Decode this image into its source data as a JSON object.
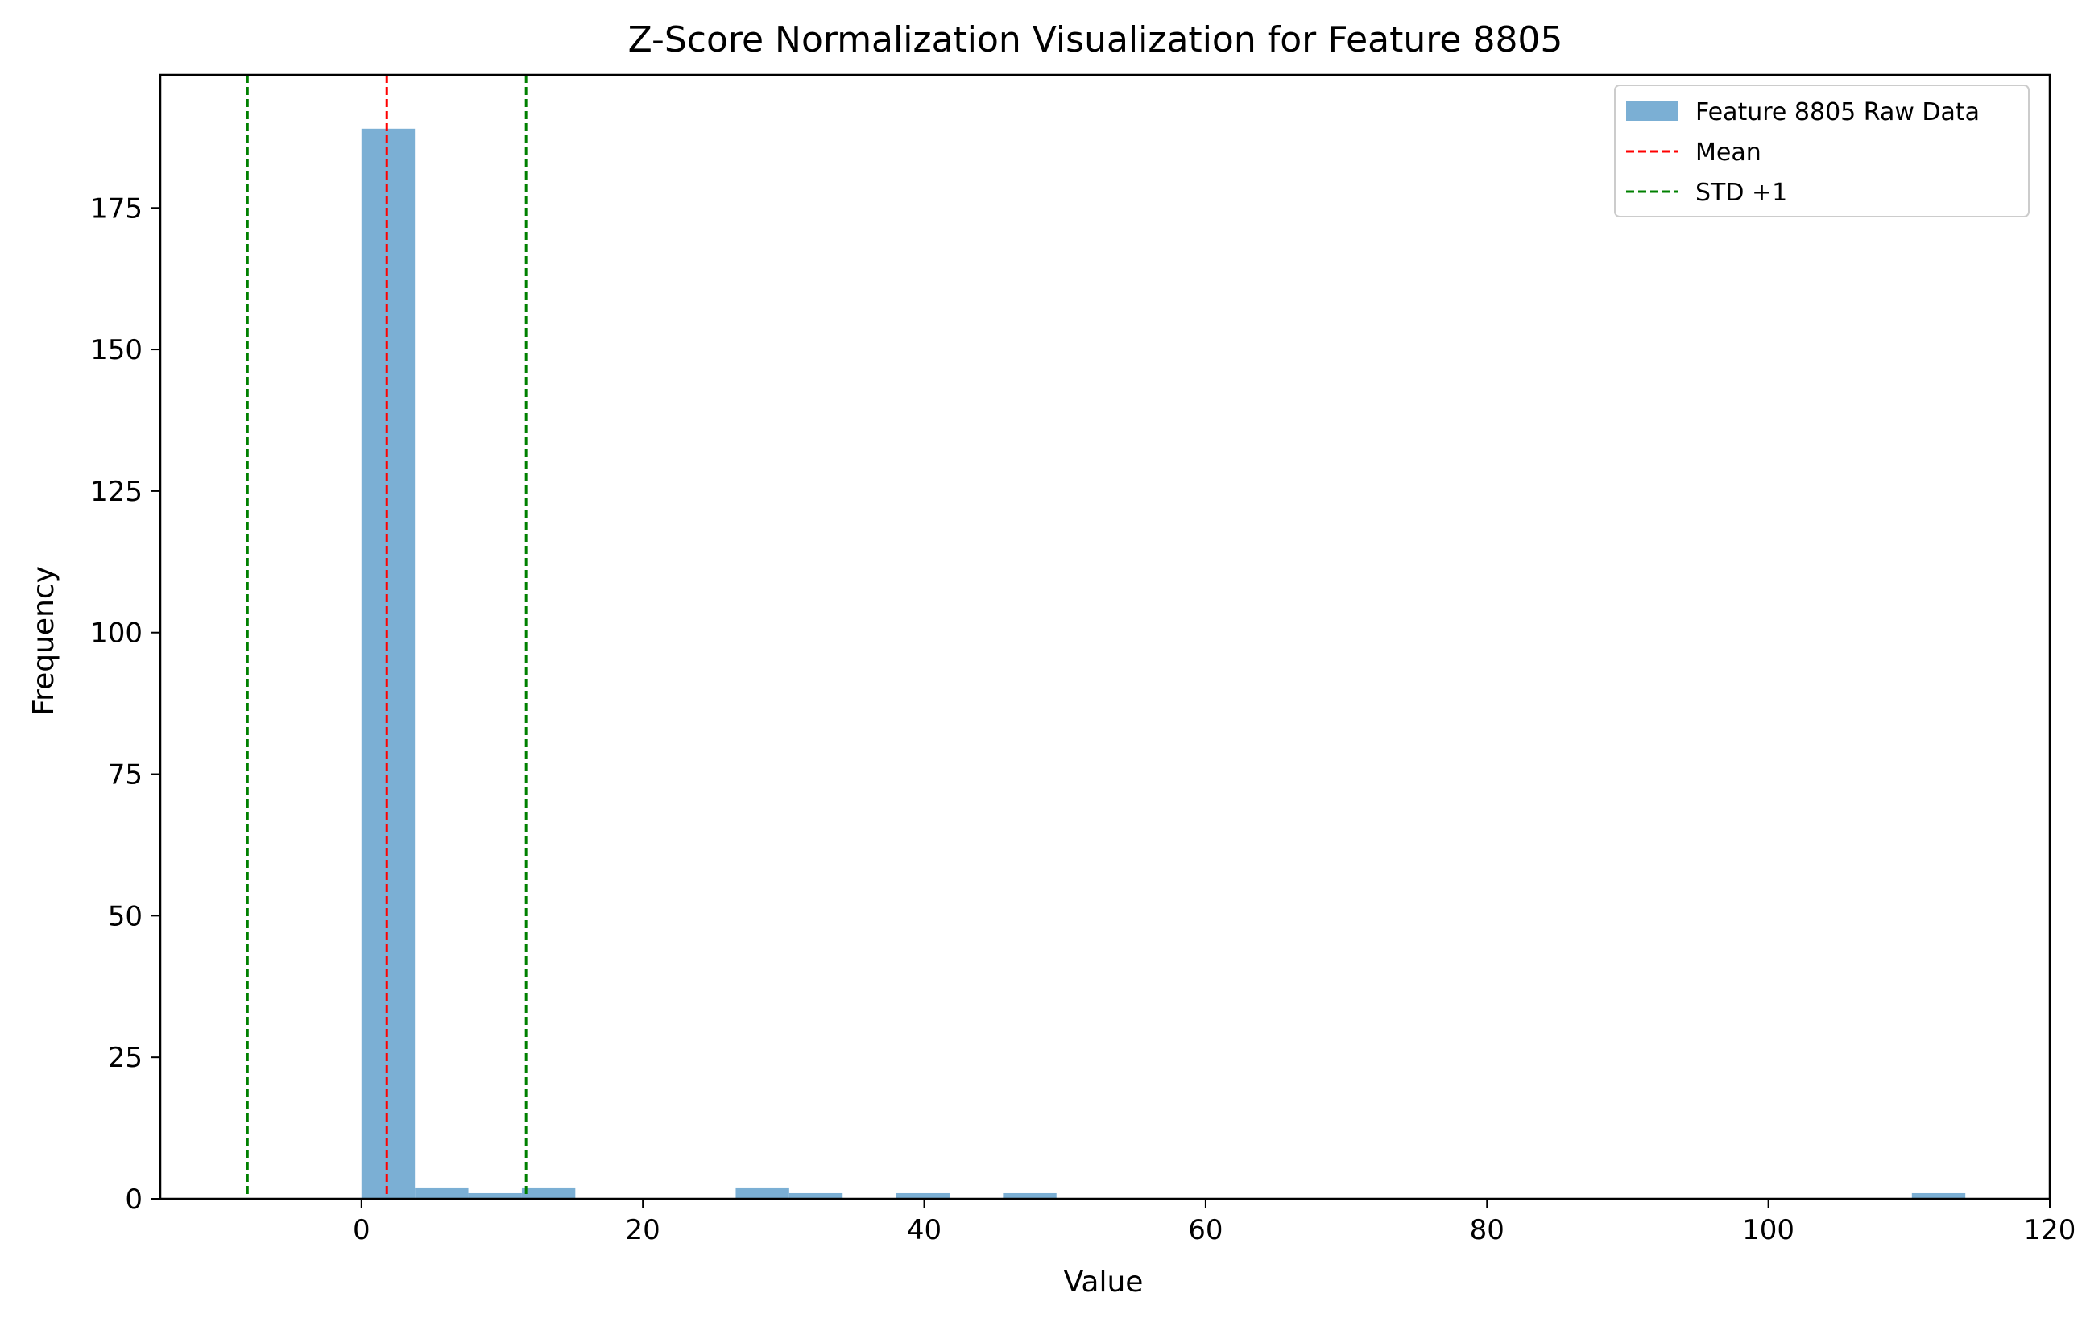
{
  "chart_data": {
    "type": "bar",
    "title": "Z-Score Normalization Visualization for Feature 8805",
    "xlabel": "Value",
    "ylabel": "Frequency",
    "xlim": [
      -14.3,
      120
    ],
    "ylim": [
      0,
      198.5
    ],
    "x_ticks": [
      {
        "value": 0,
        "label": "0"
      },
      {
        "value": 20,
        "label": "20"
      },
      {
        "value": 40,
        "label": "40"
      },
      {
        "value": 60,
        "label": "60"
      },
      {
        "value": 80,
        "label": "80"
      },
      {
        "value": 100,
        "label": "100"
      },
      {
        "value": 120,
        "label": "120"
      }
    ],
    "y_ticks": [
      {
        "value": 0,
        "label": "0"
      },
      {
        "value": 25,
        "label": "25"
      },
      {
        "value": 50,
        "label": "50"
      },
      {
        "value": 75,
        "label": "75"
      },
      {
        "value": 100,
        "label": "100"
      },
      {
        "value": 125,
        "label": "125"
      },
      {
        "value": 150,
        "label": "150"
      },
      {
        "value": 175,
        "label": "175"
      }
    ],
    "grid": false,
    "legend_position": "top-right",
    "series": [
      {
        "name": "Feature 8805 Raw Data",
        "kind": "histogram",
        "color": "#7bafd4",
        "bins": [
          {
            "x0": 0.0,
            "x1": 3.8,
            "count": 189
          },
          {
            "x0": 3.8,
            "x1": 7.6,
            "count": 2
          },
          {
            "x0": 7.6,
            "x1": 11.4,
            "count": 1
          },
          {
            "x0": 11.4,
            "x1": 15.2,
            "count": 2
          },
          {
            "x0": 26.6,
            "x1": 30.4,
            "count": 2
          },
          {
            "x0": 30.4,
            "x1": 34.2,
            "count": 1
          },
          {
            "x0": 38.0,
            "x1": 41.8,
            "count": 1
          },
          {
            "x0": 45.6,
            "x1": 49.4,
            "count": 1
          },
          {
            "x0": 110.2,
            "x1": 114.0,
            "count": 1
          }
        ]
      },
      {
        "name": "Mean",
        "kind": "vline",
        "color": "#ff0000",
        "style": "dashed",
        "x": [
          1.8
        ]
      },
      {
        "name": "STD +1",
        "kind": "vline",
        "color": "#008000",
        "style": "dashed",
        "x": [
          -8.1,
          11.7
        ]
      }
    ]
  }
}
